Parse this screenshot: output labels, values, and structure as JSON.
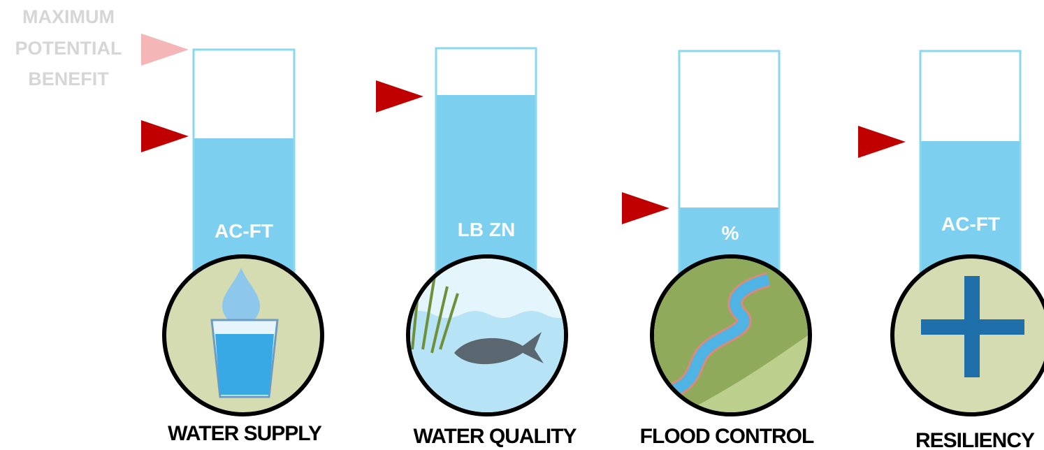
{
  "legend": {
    "lines": [
      "MAXIMUM",
      "POTENTIAL",
      "BENEFIT"
    ]
  },
  "gauges": [
    {
      "unit": "AC-FT",
      "label": "WATER SUPPLY"
    },
    {
      "unit": "LB ZN",
      "label": "WATER QUALITY"
    },
    {
      "unit": "%",
      "label": "FLOOD CONTROL"
    },
    {
      "unit": "AC-FT",
      "label": "RESILIENCY"
    }
  ]
}
